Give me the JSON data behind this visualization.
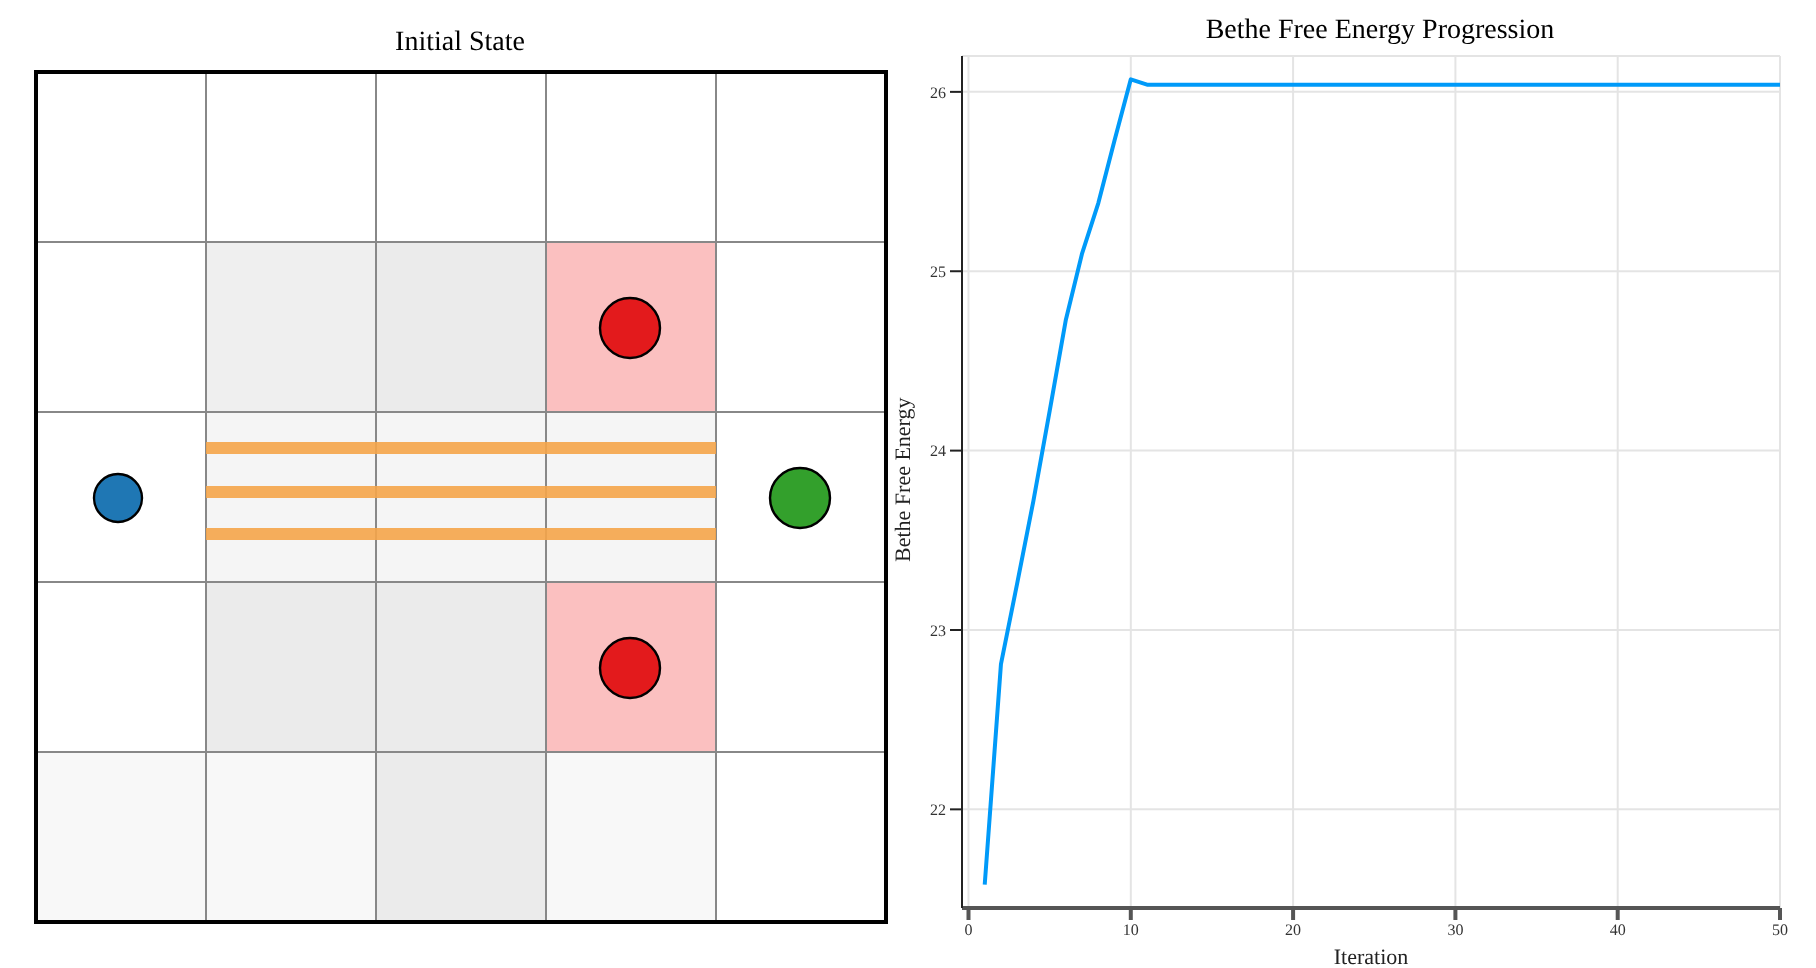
{
  "chart_data": [
    {
      "type": "other",
      "title": "Initial State"
    },
    {
      "type": "line",
      "title": "Bethe Free Energy Progression",
      "xlabel": "Iteration",
      "ylabel": "Bethe Free Energy",
      "x": [
        1,
        2,
        3,
        4,
        5,
        6,
        7,
        8,
        9,
        10,
        11,
        12,
        15,
        20,
        25,
        30,
        35,
        40,
        45,
        50
      ],
      "series": [
        {
          "color": "#009af9",
          "values": [
            21.58,
            22.81,
            23.26,
            23.72,
            24.22,
            24.73,
            25.1,
            25.38,
            25.73,
            26.07,
            26.04,
            26.04,
            26.04,
            26.04,
            26.04,
            26.04,
            26.04,
            26.04,
            26.04,
            26.04
          ]
        }
      ],
      "xlim": [
        -0.4,
        50
      ],
      "xticks": [
        0,
        10,
        20,
        30,
        40,
        50
      ],
      "ylim": [
        21.45,
        26.2
      ],
      "yticks": [
        22,
        23,
        24,
        25,
        26
      ],
      "grid": true,
      "legend": false,
      "marker": "none",
      "line_style": "solid"
    }
  ]
}
